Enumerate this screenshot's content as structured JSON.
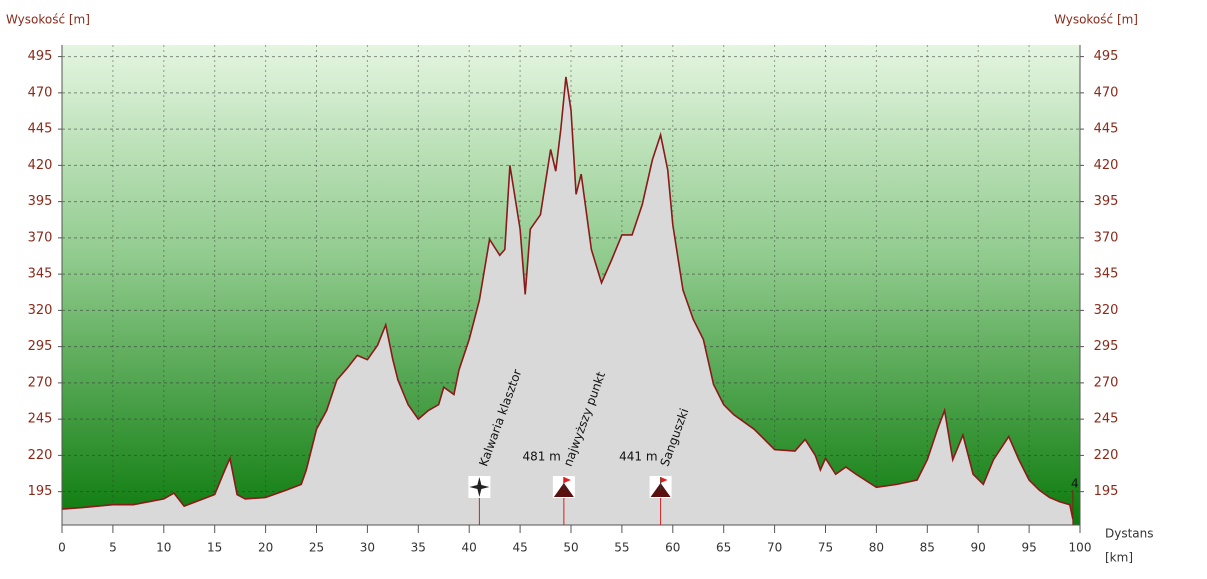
{
  "chart_data": {
    "type": "area",
    "y_label": "Wysokość [m]",
    "y2_label": "Wysokość [m]",
    "x_label": "Dystans",
    "x_unit": "[km]",
    "x": [
      0,
      2,
      5,
      7,
      10,
      11,
      12,
      15,
      16,
      16.5,
      17.2,
      18,
      20,
      22,
      23.5,
      24,
      25,
      26,
      27,
      28,
      29,
      30,
      31,
      31.8,
      32.5,
      33,
      34,
      35,
      36,
      37,
      37.5,
      38.5,
      39,
      40,
      41,
      42,
      43,
      43.5,
      44,
      45,
      45.5,
      46,
      47,
      48,
      48.5,
      49,
      49.5,
      50,
      50.5,
      51,
      52,
      53,
      54,
      55,
      56,
      57,
      58,
      58.8,
      59.5,
      60,
      61,
      62,
      63,
      64,
      65,
      66,
      68,
      70,
      72,
      73,
      74,
      74.5,
      75,
      76,
      77,
      78,
      80,
      82,
      84,
      85,
      86,
      86.7,
      87.5,
      88.5,
      89.5,
      90.5,
      91.5,
      93,
      94,
      95,
      96,
      97,
      98,
      99,
      99.3
    ],
    "series": [
      {
        "name": "Wysokość",
        "color": "#8b1a1a",
        "fill": "#d9d9d9",
        "values": [
          183,
          184,
          186,
          186,
          190,
          194,
          185,
          193,
          210,
          218,
          193,
          190,
          191,
          196,
          200,
          210,
          238,
          251,
          272,
          280,
          289,
          286,
          296,
          310,
          286,
          272,
          255,
          245,
          251,
          255,
          267,
          262,
          279,
          300,
          327,
          369,
          358,
          362,
          420,
          376,
          331,
          376,
          386,
          431,
          416,
          445,
          481,
          458,
          400,
          414,
          362,
          339,
          355,
          372,
          372,
          393,
          424,
          441,
          417,
          379,
          334,
          314,
          300,
          269,
          255,
          248,
          238,
          224,
          223,
          231,
          220,
          210,
          218,
          207,
          212,
          207,
          198,
          200,
          203,
          217,
          238,
          251,
          217,
          234,
          207,
          200,
          217,
          233,
          217,
          203,
          196,
          191,
          188,
          186,
          176
        ]
      }
    ],
    "xlim": [
      0,
      100
    ],
    "xticks": [
      0,
      5,
      10,
      15,
      20,
      25,
      30,
      35,
      40,
      45,
      50,
      55,
      60,
      65,
      70,
      75,
      80,
      85,
      90,
      95,
      100
    ],
    "ylim": [
      172,
      503
    ],
    "yticks": [
      195,
      220,
      245,
      270,
      295,
      320,
      345,
      370,
      395,
      420,
      445,
      470,
      495
    ],
    "y2lim": [
      172,
      503
    ],
    "y2ticks": [
      195,
      220,
      245,
      270,
      295,
      320,
      345,
      370,
      395,
      420,
      445,
      470,
      495
    ],
    "grid": true,
    "annotations": [
      {
        "x": 41,
        "text": "Kalwaria klasztor"
      },
      {
        "x": 49.3,
        "text": "najwyższy punkt",
        "value": 481,
        "value_label": "481 m"
      },
      {
        "x": 58.8,
        "text": "Sanguszki",
        "value": 441,
        "value_label": "441 m"
      },
      {
        "x": 99.3,
        "text": "4"
      }
    ]
  }
}
